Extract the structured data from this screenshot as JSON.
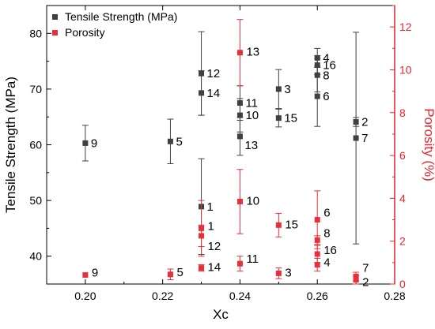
{
  "chart_data": {
    "type": "scatter",
    "xlabel": "Xc",
    "ylabel": "Tensile Strength (MPa)",
    "y2label": "Porosity (%)",
    "xlim": [
      0.19,
      0.28
    ],
    "ylim": [
      35,
      85
    ],
    "y2lim": [
      0,
      13
    ],
    "xticks": [
      "0.20",
      "0.22",
      "0.24",
      "0.26",
      "0.28"
    ],
    "yticks": [
      "40",
      "50",
      "60",
      "70",
      "80"
    ],
    "y2ticks": [
      "0",
      "2",
      "4",
      "6",
      "8",
      "10",
      "12"
    ],
    "legend_position": "top-left",
    "series": [
      {
        "name": "Tensile Strength (MPa)",
        "axis": "left",
        "color": "#404040",
        "points": [
          {
            "label": "9",
            "x": 0.2,
            "y": 60.3,
            "err": 3.2
          },
          {
            "label": "5",
            "x": 0.222,
            "y": 60.6,
            "err": 4.0
          },
          {
            "label": "12",
            "x": 0.23,
            "y": 72.8,
            "err": 7.5
          },
          {
            "label": "14",
            "x": 0.23,
            "y": 69.3,
            "err": 4.0
          },
          {
            "label": "1",
            "x": 0.23,
            "y": 48.9,
            "err": 8.6
          },
          {
            "label": "11",
            "x": 0.24,
            "y": 67.5,
            "err": 3.1
          },
          {
            "label": "10",
            "x": 0.24,
            "y": 65.3,
            "err": 3.0
          },
          {
            "label": "13",
            "x": 0.24,
            "y": 61.5,
            "err": 3.4
          },
          {
            "label": "3",
            "x": 0.25,
            "y": 70.0,
            "err": 3.5
          },
          {
            "label": "15",
            "x": 0.25,
            "y": 64.8,
            "err": 1.6
          },
          {
            "label": "4",
            "x": 0.26,
            "y": 75.6,
            "err": 1.7
          },
          {
            "label": "16",
            "x": 0.26,
            "y": 74.3,
            "err": 1.7
          },
          {
            "label": "8",
            "x": 0.26,
            "y": 72.5,
            "err": 3.0
          },
          {
            "label": "6",
            "x": 0.26,
            "y": 68.7,
            "err": 5.4
          },
          {
            "label": "2",
            "x": 0.27,
            "y": 64.1,
            "err": 0.8
          },
          {
            "label": "7",
            "x": 0.27,
            "y": 61.2,
            "err": 19.0
          }
        ]
      },
      {
        "name": "Porosity",
        "axis": "right",
        "color": "#e8303a",
        "points": [
          {
            "label": "9",
            "x": 0.2,
            "y": 0.42,
            "err": 0.0
          },
          {
            "label": "5",
            "x": 0.222,
            "y": 0.45,
            "err": 0.25
          },
          {
            "label": "14",
            "x": 0.23,
            "y": 0.75,
            "err": 0.15
          },
          {
            "label": "1",
            "x": 0.23,
            "y": 2.6,
            "err": 1.3
          },
          {
            "label": "12",
            "x": 0.23,
            "y": 2.25,
            "err": 0.5
          },
          {
            "label": "11",
            "x": 0.24,
            "y": 0.95,
            "err": 0.35
          },
          {
            "label": "10",
            "x": 0.24,
            "y": 3.85,
            "err": 1.5
          },
          {
            "label": "13",
            "x": 0.24,
            "y": 10.8,
            "err": 1.55
          },
          {
            "label": "3",
            "x": 0.25,
            "y": 0.5,
            "err": 0.25
          },
          {
            "label": "15",
            "x": 0.25,
            "y": 2.75,
            "err": 0.55
          },
          {
            "label": "6",
            "x": 0.26,
            "y": 3.0,
            "err": 1.35
          },
          {
            "label": "8",
            "x": 0.26,
            "y": 2.05,
            "err": 0.2
          },
          {
            "label": "16",
            "x": 0.26,
            "y": 1.4,
            "err": 0.4
          },
          {
            "label": "4",
            "x": 0.26,
            "y": 0.9,
            "err": 0.3
          },
          {
            "label": "7",
            "x": 0.27,
            "y": 0.35,
            "err": 0.2
          },
          {
            "label": "2",
            "x": 0.27,
            "y": 0.2,
            "err": 0.2
          }
        ]
      }
    ]
  }
}
